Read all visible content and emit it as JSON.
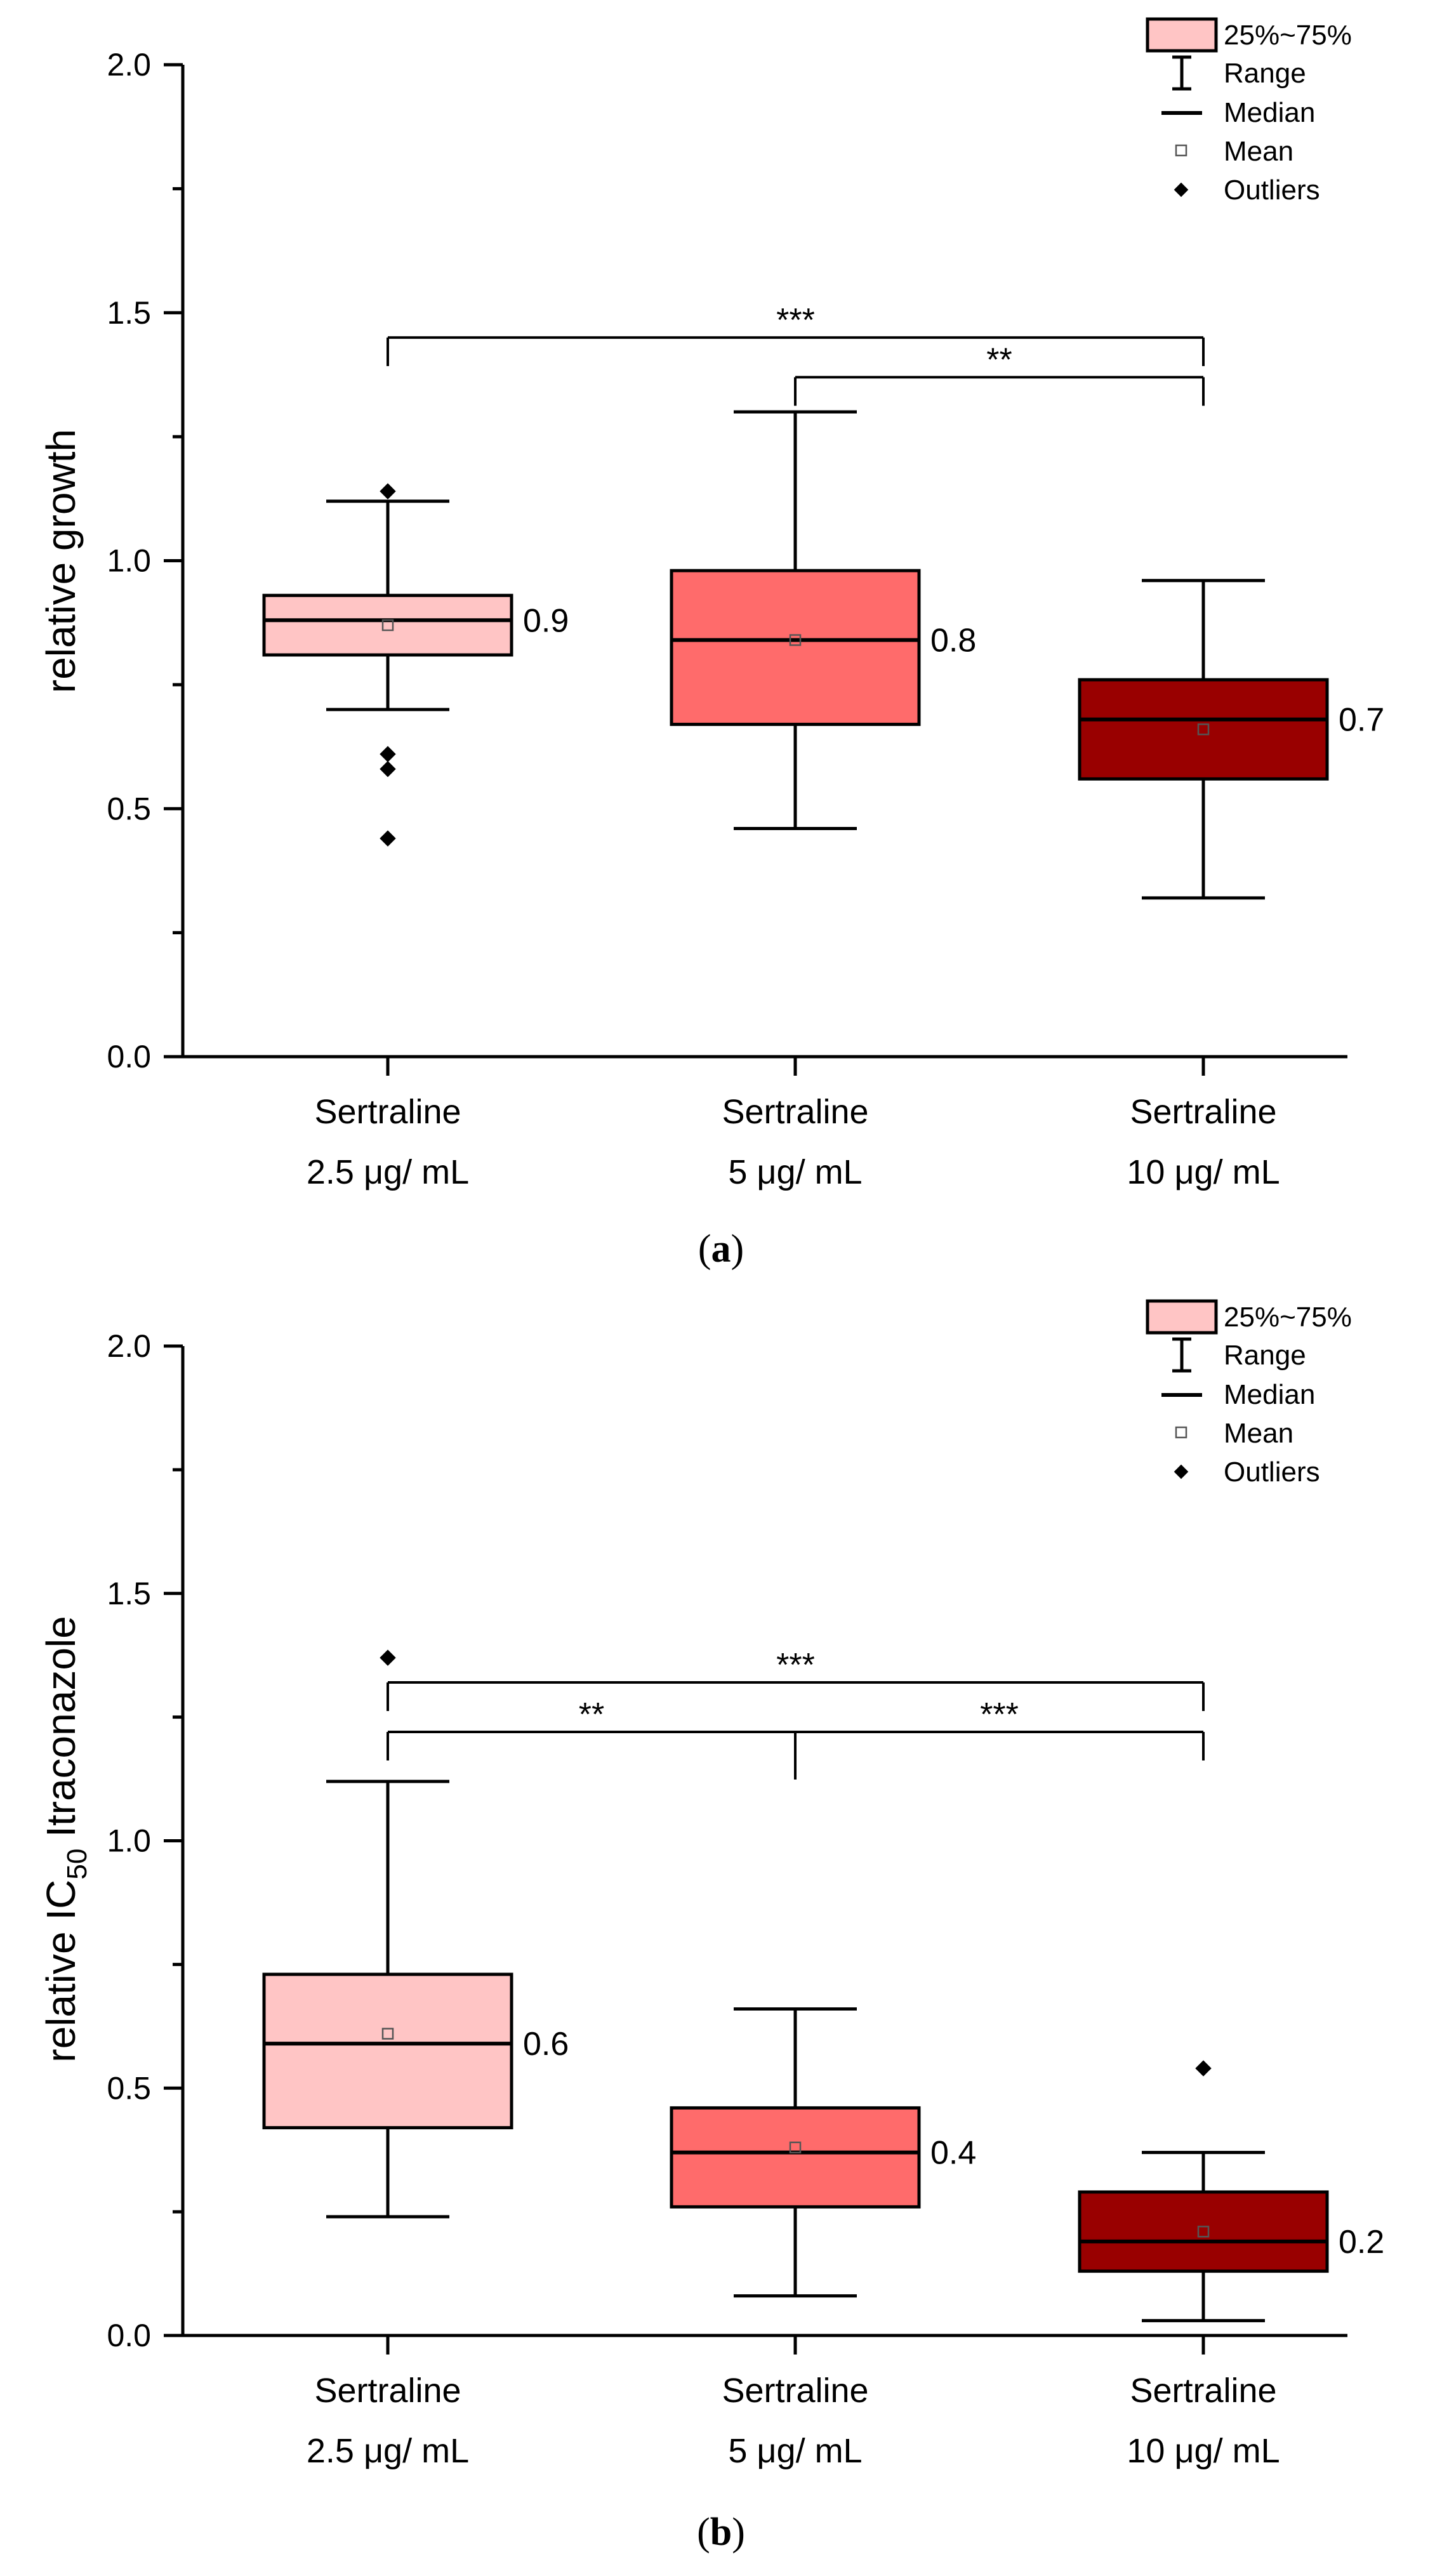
{
  "chart_data": [
    {
      "type": "box",
      "panel_label": "a",
      "ylabel": "relative growth",
      "ylim": [
        0,
        2.0
      ],
      "yticks": [
        0.0,
        0.5,
        1.0,
        1.5,
        2.0
      ],
      "ytick_labels": [
        "0.0",
        "0.5",
        "1.0",
        "1.5",
        "2.0"
      ],
      "categories": [
        {
          "line1": "Sertraline",
          "line2": "2.5 μg/ mL"
        },
        {
          "line1": "Sertraline",
          "line2": "5 μg/ mL"
        },
        {
          "line1": "Sertraline",
          "line2": "10 μg/ mL"
        }
      ],
      "boxes": [
        {
          "min": 0.7,
          "q1": 0.81,
          "median": 0.88,
          "q3": 0.93,
          "max": 1.12,
          "mean": 0.87,
          "label": "0.9",
          "color": "#ffc5c5",
          "outliers": [
            1.14,
            0.61,
            0.58,
            0.44
          ]
        },
        {
          "min": 0.46,
          "q1": 0.67,
          "median": 0.84,
          "q3": 0.98,
          "max": 1.3,
          "mean": 0.84,
          "label": "0.8",
          "color": "#ff6b6b",
          "outliers": []
        },
        {
          "min": 0.32,
          "q1": 0.56,
          "median": 0.68,
          "q3": 0.76,
          "max": 0.96,
          "mean": 0.66,
          "label": "0.7",
          "color": "#990000",
          "outliers": []
        }
      ],
      "significance": [
        {
          "from": 0,
          "to": 2,
          "level": 1.45,
          "label": "***"
        },
        {
          "from": 1,
          "to": 2,
          "level": 1.37,
          "label": "**"
        }
      ]
    },
    {
      "type": "box",
      "panel_label": "b",
      "ylabel_main": "relative IC",
      "ylabel_sub": "50",
      "ylabel_tail": " Itraconazole",
      "ylim": [
        0,
        2.0
      ],
      "yticks": [
        0.0,
        0.5,
        1.0,
        1.5,
        2.0
      ],
      "ytick_labels": [
        "0.0",
        "0.5",
        "1.0",
        "1.5",
        "2.0"
      ],
      "categories": [
        {
          "line1": "Sertraline",
          "line2": "2.5 μg/ mL"
        },
        {
          "line1": "Sertraline",
          "line2": "5 μg/ mL"
        },
        {
          "line1": "Sertraline",
          "line2": "10 μg/ mL"
        }
      ],
      "boxes": [
        {
          "min": 0.24,
          "q1": 0.42,
          "median": 0.59,
          "q3": 0.73,
          "max": 1.12,
          "mean": 0.61,
          "label": "0.6",
          "color": "#ffc5c5",
          "outliers": [
            1.37
          ]
        },
        {
          "min": 0.08,
          "q1": 0.26,
          "median": 0.37,
          "q3": 0.46,
          "max": 0.66,
          "mean": 0.38,
          "label": "0.4",
          "color": "#ff6b6b",
          "outliers": []
        },
        {
          "min": 0.03,
          "q1": 0.13,
          "median": 0.19,
          "q3": 0.29,
          "max": 0.37,
          "mean": 0.21,
          "label": "0.2",
          "color": "#990000",
          "outliers": [
            0.54
          ]
        }
      ],
      "significance": [
        {
          "from": 0,
          "to": 2,
          "level": 1.32,
          "label": "***"
        },
        {
          "from": 0,
          "to": 1,
          "level": 1.22,
          "label": "**"
        },
        {
          "from": 1,
          "to": 2,
          "level": 1.22,
          "label": "***"
        }
      ]
    }
  ],
  "legend": {
    "box_label": "25%~75%",
    "range_label": "Range",
    "median_label": "Median",
    "mean_label": "Mean",
    "outliers_label": "Outliers"
  }
}
